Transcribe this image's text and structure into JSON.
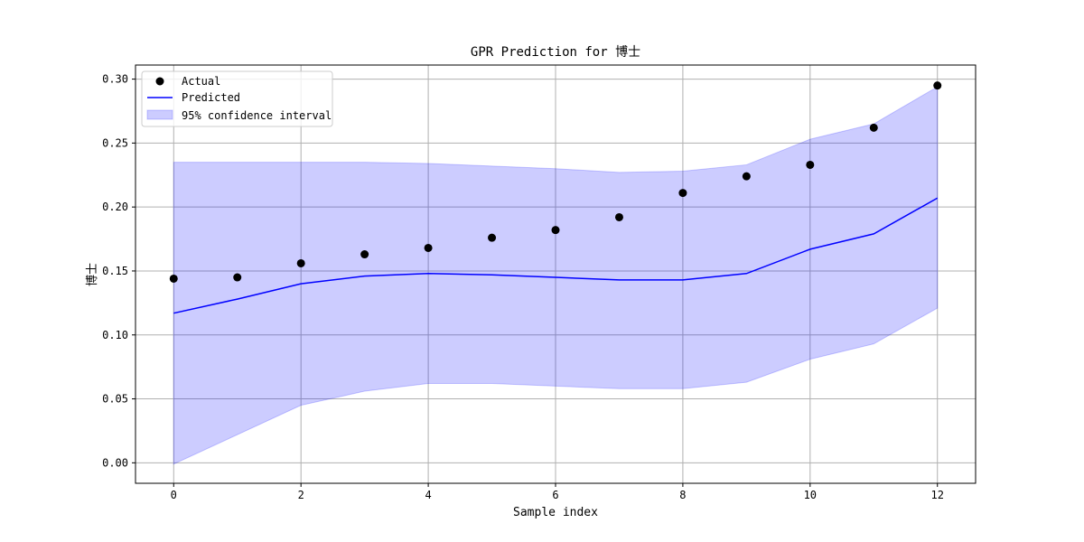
{
  "chart_data": {
    "type": "line",
    "title": "GPR Prediction for 博士",
    "xlabel": "Sample index",
    "ylabel": "博士",
    "xlim": [
      -0.6,
      12.6
    ],
    "ylim": [
      -0.016,
      0.311
    ],
    "x_ticks": [
      0,
      2,
      4,
      6,
      8,
      10,
      12
    ],
    "x_tick_labels": [
      "0",
      "2",
      "4",
      "6",
      "8",
      "10",
      "12"
    ],
    "y_ticks": [
      0.0,
      0.05,
      0.1,
      0.15,
      0.2,
      0.25,
      0.3
    ],
    "y_tick_labels": [
      "0.00",
      "0.05",
      "0.10",
      "0.15",
      "0.20",
      "0.25",
      "0.30"
    ],
    "grid": true,
    "legend_position": "top-left",
    "x": [
      0,
      1,
      2,
      3,
      4,
      5,
      6,
      7,
      8,
      9,
      10,
      11,
      12
    ],
    "series": [
      {
        "name": "Actual",
        "kind": "scatter",
        "color": "#000000",
        "values": [
          0.144,
          0.145,
          0.156,
          0.163,
          0.168,
          0.176,
          0.182,
          0.192,
          0.211,
          0.224,
          0.233,
          0.262,
          0.295
        ]
      },
      {
        "name": "Predicted",
        "kind": "line",
        "color": "#0000ff",
        "values": [
          0.117,
          0.128,
          0.14,
          0.146,
          0.148,
          0.147,
          0.145,
          0.143,
          0.143,
          0.148,
          0.167,
          0.179,
          0.207
        ]
      },
      {
        "name": "95% confidence interval",
        "kind": "band",
        "color": "#0000ff",
        "opacity": 0.2,
        "lower": [
          -0.001,
          0.022,
          0.045,
          0.056,
          0.062,
          0.062,
          0.06,
          0.058,
          0.058,
          0.063,
          0.081,
          0.093,
          0.121
        ],
        "upper": [
          0.235,
          0.235,
          0.235,
          0.235,
          0.234,
          0.232,
          0.23,
          0.227,
          0.228,
          0.233,
          0.253,
          0.265,
          0.294
        ]
      }
    ]
  }
}
